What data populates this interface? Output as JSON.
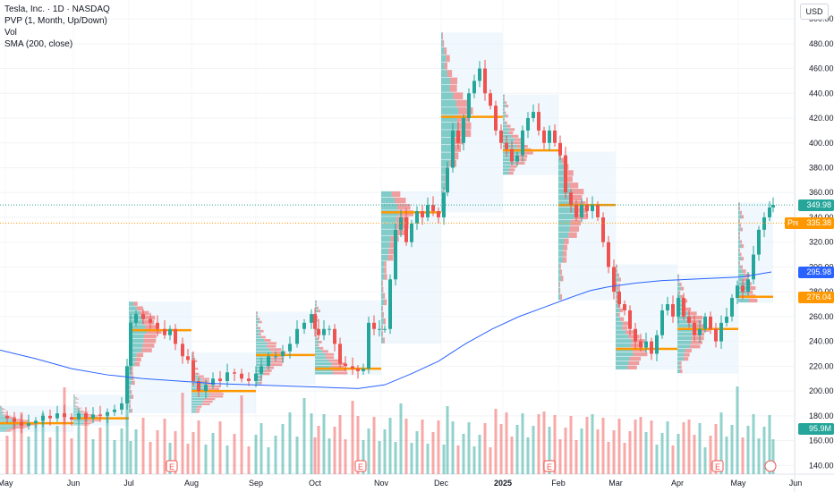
{
  "legend": {
    "title": "Tesla, Inc. · 1D · NASDAQ",
    "indicator1": "PVP (1, Month, Up/Down)",
    "indicator2": "Vol",
    "indicator3": "SMA (200, close)"
  },
  "currency_button": "USD",
  "price_tags": {
    "last": "349.98",
    "pre_label": "Pre",
    "pre_value": "335.38",
    "sma": "295.98",
    "poc": "276.04",
    "volume": "95.9M"
  },
  "colors": {
    "up": "#26a69a",
    "down": "#ef5350",
    "sma": "#2962ff",
    "poc": "#ff9800",
    "pre": "#ff9800",
    "volume_tag": "#26a69a"
  },
  "chart_data": {
    "type": "candlestick",
    "ylim": [
      133,
      508
    ],
    "y_ticks": [
      140,
      160,
      180,
      200,
      220,
      240,
      260,
      280,
      300,
      320,
      340,
      360,
      380,
      400,
      420,
      440,
      460,
      480,
      500
    ],
    "x_ticks": [
      "May",
      "Jun",
      "Jul",
      "Aug",
      "Sep",
      "Oct",
      "Nov",
      "Dec",
      "2025",
      "Feb",
      "Mar",
      "Apr",
      "May",
      "Jun"
    ],
    "monthly_profiles": [
      {
        "month": "May",
        "low": 167,
        "high": 188,
        "poc": 174
      },
      {
        "month": "Jun",
        "low": 172,
        "high": 197,
        "poc": 178
      },
      {
        "month": "Jul",
        "low": 182,
        "high": 272,
        "poc": 249
      },
      {
        "month": "Aug",
        "low": 182,
        "high": 231,
        "poc": 200
      },
      {
        "month": "Sep",
        "low": 205,
        "high": 264,
        "poc": 229
      },
      {
        "month": "Oct",
        "low": 213,
        "high": 273,
        "poc": 218
      },
      {
        "month": "Nov",
        "low": 238,
        "high": 361,
        "poc": 344
      },
      {
        "month": "Dec",
        "low": 344,
        "high": 489,
        "poc": 421
      },
      {
        "month": "Jan",
        "low": 374,
        "high": 439,
        "poc": 394
      },
      {
        "month": "Feb",
        "low": 273,
        "high": 393,
        "poc": 350
      },
      {
        "month": "Mar",
        "low": 217,
        "high": 302,
        "poc": 234
      },
      {
        "month": "Apr",
        "low": 214,
        "high": 294,
        "poc": 250
      },
      {
        "month": "May",
        "low": 271,
        "high": 352,
        "poc": 276
      }
    ],
    "closes": [
      [
        0,
        180
      ],
      [
        8,
        178
      ],
      [
        16,
        175
      ],
      [
        24,
        172
      ],
      [
        32,
        174
      ],
      [
        40,
        176
      ],
      [
        48,
        180
      ],
      [
        56,
        178
      ],
      [
        64,
        182
      ],
      [
        72,
        179
      ],
      [
        80,
        177
      ],
      [
        88,
        182
      ],
      [
        96,
        178
      ],
      [
        104,
        181
      ],
      [
        112,
        180
      ],
      [
        120,
        183
      ],
      [
        128,
        185
      ],
      [
        136,
        190
      ],
      [
        142,
        220
      ],
      [
        146,
        255
      ],
      [
        152,
        262
      ],
      [
        160,
        258
      ],
      [
        168,
        255
      ],
      [
        176,
        250
      ],
      [
        184,
        245
      ],
      [
        190,
        250
      ],
      [
        196,
        238
      ],
      [
        204,
        228
      ],
      [
        210,
        225
      ],
      [
        216,
        208
      ],
      [
        222,
        200
      ],
      [
        230,
        205
      ],
      [
        238,
        210
      ],
      [
        246,
        208
      ],
      [
        254,
        215
      ],
      [
        262,
        214
      ],
      [
        270,
        210
      ],
      [
        278,
        208
      ],
      [
        286,
        214
      ],
      [
        292,
        220
      ],
      [
        300,
        228
      ],
      [
        308,
        228
      ],
      [
        316,
        232
      ],
      [
        324,
        238
      ],
      [
        332,
        250
      ],
      [
        340,
        255
      ],
      [
        348,
        262
      ],
      [
        352,
        250
      ],
      [
        356,
        245
      ],
      [
        362,
        250
      ],
      [
        368,
        250
      ],
      [
        374,
        238
      ],
      [
        380,
        222
      ],
      [
        386,
        220
      ],
      [
        394,
        218
      ],
      [
        400,
        216
      ],
      [
        406,
        218
      ],
      [
        412,
        255
      ],
      [
        418,
        250
      ],
      [
        424,
        250
      ],
      [
        430,
        250
      ],
      [
        436,
        290
      ],
      [
        442,
        330
      ],
      [
        448,
        340
      ],
      [
        454,
        320
      ],
      [
        460,
        335
      ],
      [
        466,
        345
      ],
      [
        472,
        340
      ],
      [
        478,
        350
      ],
      [
        484,
        345
      ],
      [
        490,
        340
      ],
      [
        496,
        360
      ],
      [
        500,
        380
      ],
      [
        506,
        410
      ],
      [
        512,
        400
      ],
      [
        518,
        420
      ],
      [
        524,
        440
      ],
      [
        530,
        450
      ],
      [
        536,
        460
      ],
      [
        542,
        440
      ],
      [
        548,
        430
      ],
      [
        554,
        410
      ],
      [
        560,
        400
      ],
      [
        566,
        395
      ],
      [
        572,
        385
      ],
      [
        578,
        390
      ],
      [
        584,
        410
      ],
      [
        590,
        420
      ],
      [
        596,
        425
      ],
      [
        602,
        410
      ],
      [
        608,
        400
      ],
      [
        614,
        410
      ],
      [
        620,
        400
      ],
      [
        626,
        390
      ],
      [
        632,
        360
      ],
      [
        638,
        350
      ],
      [
        644,
        340
      ],
      [
        650,
        350
      ],
      [
        656,
        345
      ],
      [
        662,
        350
      ],
      [
        668,
        340
      ],
      [
        674,
        320
      ],
      [
        680,
        300
      ],
      [
        686,
        280
      ],
      [
        692,
        270
      ],
      [
        698,
        265
      ],
      [
        704,
        250
      ],
      [
        710,
        240
      ],
      [
        716,
        235
      ],
      [
        722,
        240
      ],
      [
        728,
        230
      ],
      [
        734,
        245
      ],
      [
        740,
        265
      ],
      [
        746,
        270
      ],
      [
        752,
        260
      ],
      [
        758,
        275
      ],
      [
        764,
        260
      ],
      [
        770,
        255
      ],
      [
        776,
        245
      ],
      [
        782,
        250
      ],
      [
        788,
        260
      ],
      [
        794,
        250
      ],
      [
        800,
        240
      ],
      [
        806,
        255
      ],
      [
        812,
        260
      ],
      [
        818,
        275
      ],
      [
        824,
        285
      ],
      [
        830,
        280
      ],
      [
        836,
        290
      ],
      [
        842,
        310
      ],
      [
        848,
        330
      ],
      [
        854,
        340
      ],
      [
        860,
        348
      ],
      [
        864,
        350
      ]
    ],
    "sma200": [
      [
        0,
        233
      ],
      [
        40,
        226
      ],
      [
        80,
        218
      ],
      [
        120,
        213
      ],
      [
        160,
        210
      ],
      [
        200,
        208
      ],
      [
        240,
        206
      ],
      [
        280,
        205
      ],
      [
        320,
        204
      ],
      [
        360,
        203
      ],
      [
        400,
        202
      ],
      [
        430,
        205
      ],
      [
        460,
        214
      ],
      [
        490,
        224
      ],
      [
        520,
        238
      ],
      [
        550,
        250
      ],
      [
        580,
        260
      ],
      [
        610,
        268
      ],
      [
        640,
        276
      ],
      [
        660,
        281
      ],
      [
        680,
        284
      ],
      [
        710,
        287
      ],
      [
        740,
        289
      ],
      [
        770,
        290
      ],
      [
        800,
        291
      ],
      [
        830,
        292
      ],
      [
        862,
        296
      ]
    ],
    "last_price": 349.98,
    "pre_market_price": 335.38,
    "sma_value": 295.98,
    "poc_value": 276.04,
    "volume_last": "95.9M"
  },
  "earnings_markers": [
    {
      "x": 192,
      "label": "E"
    },
    {
      "x": 403,
      "label": "E"
    },
    {
      "x": 614,
      "label": "E"
    },
    {
      "x": 802,
      "label": "E"
    }
  ]
}
